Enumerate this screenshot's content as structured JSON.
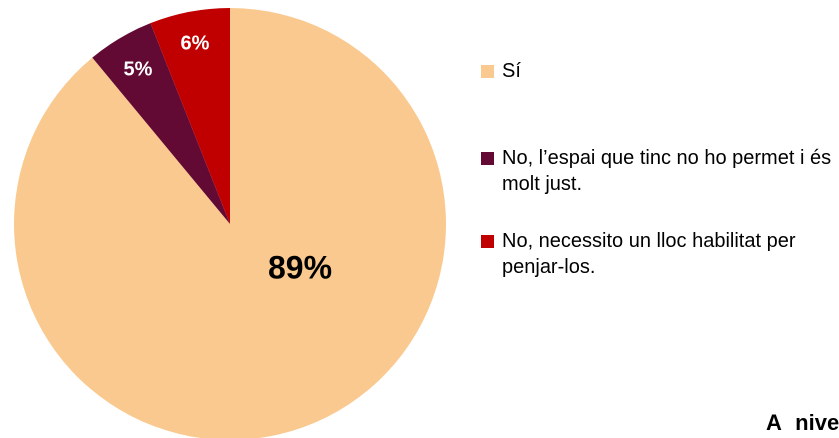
{
  "chart_data": {
    "type": "pie",
    "categories": [
      "Sí",
      "No, l’espai que tinc no ho permet i és molt just.",
      "No, necessito un lloc habilitat per penjar-los."
    ],
    "values": [
      89,
      5,
      6
    ],
    "value_labels": [
      "89%",
      "5%",
      "6%"
    ],
    "colors": [
      "#fac98f",
      "#620a33",
      "#c00000"
    ],
    "legend": "right"
  },
  "footer_text": "A nivell d"
}
